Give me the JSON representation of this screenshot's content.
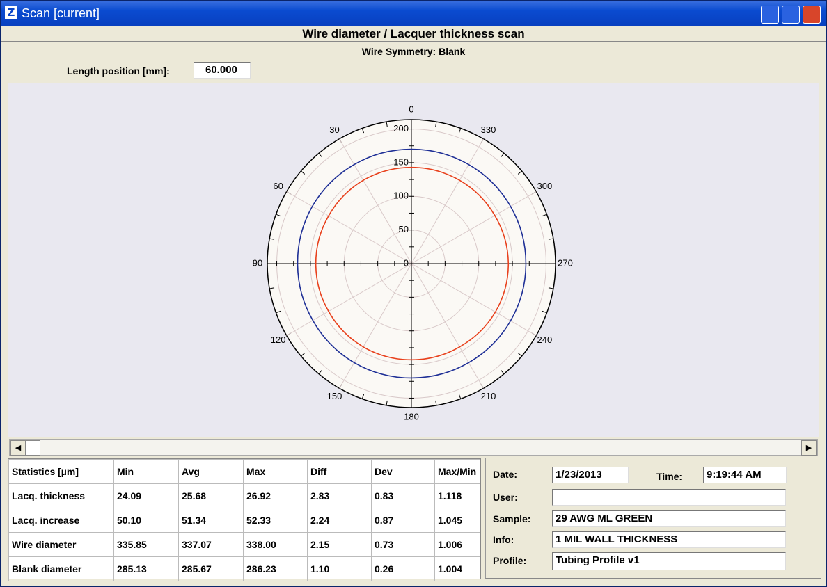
{
  "window": {
    "title": "Scan [current]"
  },
  "header": {
    "title": "Wire diameter / Lacquer thickness scan",
    "subtitle": "Wire Symmetry: Blank"
  },
  "length_position": {
    "label": "Length position [mm]:",
    "value": "60.000"
  },
  "chart_data": {
    "type": "polar",
    "angles": [
      0,
      30,
      60,
      90,
      120,
      150,
      180,
      210,
      240,
      270,
      300,
      330
    ],
    "rlim": [
      0,
      214
    ],
    "rticks": [
      0,
      50,
      100,
      150,
      200
    ],
    "grid": true,
    "series": [
      {
        "color": "#1e2f96",
        "values": [
          170,
          170,
          170,
          169,
          169,
          170,
          170,
          170,
          170,
          170,
          170,
          170
        ]
      },
      {
        "color": "#e8401c",
        "values": [
          143,
          143,
          142,
          142,
          142,
          143,
          143,
          143,
          144,
          144,
          143,
          143
        ]
      }
    ]
  },
  "statistics": {
    "columns": [
      "Statistics [µm]",
      "Min",
      "Avg",
      "Max",
      "Diff",
      "Dev",
      "Max/Min"
    ],
    "rows": [
      [
        "Lacq. thickness",
        "24.09",
        "25.68",
        "26.92",
        "2.83",
        "0.83",
        "1.118"
      ],
      [
        "Lacq. increase",
        "50.10",
        "51.34",
        "52.33",
        "2.24",
        "0.87",
        "1.045"
      ],
      [
        "Wire diameter",
        "335.85",
        "337.07",
        "338.00",
        "2.15",
        "0.73",
        "1.006"
      ],
      [
        "Blank diameter",
        "285.13",
        "285.67",
        "286.23",
        "1.10",
        "0.26",
        "1.004"
      ]
    ]
  },
  "info": {
    "date": {
      "label": "Date:",
      "value": "1/23/2013"
    },
    "time": {
      "label": "Time:",
      "value": "9:19:44 AM"
    },
    "user": {
      "label": "User:"
    },
    "sample": {
      "label": "Sample:",
      "value": "29 AWG ML GREEN"
    },
    "info": {
      "label": "Info:",
      "value": "1 MIL WALL THICKNESS"
    },
    "profile": {
      "label": "Profile:",
      "value": "Tubing Profile v1"
    }
  }
}
